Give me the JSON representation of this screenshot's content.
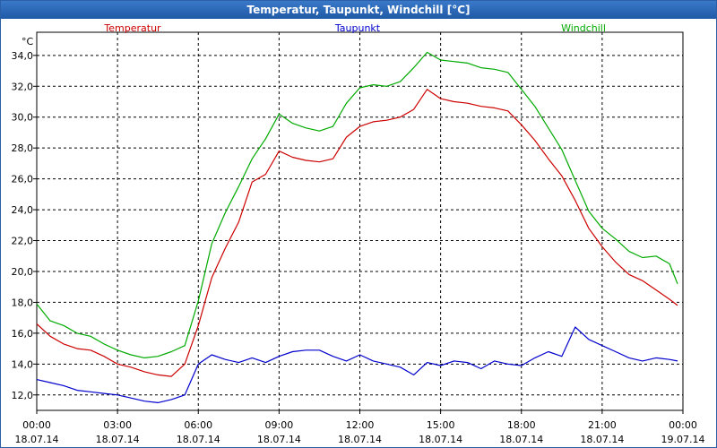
{
  "window": {
    "title": "Temperatur, Taupunkt, Windchill [°C]"
  },
  "chart_data": {
    "type": "line",
    "title": "Temperatur, Taupunkt, Windchill [°C]",
    "ylabel": "°C",
    "xlabel": "",
    "ylim": [
      11,
      35.5
    ],
    "xlim": [
      0,
      24
    ],
    "grid": true,
    "legend_position": "top",
    "yticks": [
      "12,0",
      "14,0",
      "16,0",
      "18,0",
      "20,0",
      "22,0",
      "24,0",
      "26,0",
      "28,0",
      "30,0",
      "32,0",
      "34,0"
    ],
    "ytick_values": [
      12,
      14,
      16,
      18,
      20,
      22,
      24,
      26,
      28,
      30,
      32,
      34
    ],
    "xticks": [
      {
        "time": "00:00",
        "date": "18.07.14",
        "hour": 0
      },
      {
        "time": "03:00",
        "date": "18.07.14",
        "hour": 3
      },
      {
        "time": "06:00",
        "date": "18.07.14",
        "hour": 6
      },
      {
        "time": "09:00",
        "date": "18.07.14",
        "hour": 9
      },
      {
        "time": "12:00",
        "date": "18.07.14",
        "hour": 12
      },
      {
        "time": "15:00",
        "date": "18.07.14",
        "hour": 15
      },
      {
        "time": "18:00",
        "date": "18.07.14",
        "hour": 18
      },
      {
        "time": "21:00",
        "date": "18.07.14",
        "hour": 21
      },
      {
        "time": "00:00",
        "date": "19.07.14",
        "hour": 24
      }
    ],
    "x": [
      0,
      0.5,
      1,
      1.5,
      2,
      2.5,
      3,
      3.5,
      4,
      4.5,
      5,
      5.5,
      6,
      6.5,
      7,
      7.5,
      8,
      8.5,
      9,
      9.5,
      10,
      10.5,
      11,
      11.5,
      12,
      12.5,
      13,
      13.5,
      14,
      14.5,
      15,
      15.5,
      16,
      16.5,
      17,
      17.5,
      18,
      18.5,
      19,
      19.5,
      20,
      20.5,
      21,
      21.5,
      22,
      22.5,
      23,
      23.5,
      23.8
    ],
    "series": [
      {
        "name": "Temperatur",
        "color": "#cc0000",
        "values": [
          16.6,
          15.8,
          15.3,
          15.0,
          14.9,
          14.5,
          14.0,
          13.8,
          13.5,
          13.3,
          13.2,
          14.0,
          16.5,
          19.6,
          21.5,
          23.2,
          25.8,
          26.3,
          27.8,
          27.4,
          27.2,
          27.1,
          27.3,
          28.7,
          29.4,
          29.7,
          29.8,
          30.0,
          30.5,
          31.8,
          31.2,
          31.0,
          30.9,
          30.7,
          30.6,
          30.4,
          29.5,
          28.5,
          27.3,
          26.2,
          24.6,
          22.8,
          21.6,
          20.6,
          19.8,
          19.4,
          18.8,
          18.2,
          17.8
        ]
      },
      {
        "name": "Taupunkt",
        "color": "#0000cc",
        "values": [
          13.0,
          12.8,
          12.6,
          12.3,
          12.2,
          12.1,
          12.0,
          11.8,
          11.6,
          11.5,
          11.7,
          12.0,
          14.0,
          14.6,
          14.3,
          14.1,
          14.4,
          14.1,
          14.5,
          14.8,
          14.9,
          14.9,
          14.5,
          14.2,
          14.6,
          14.2,
          14.0,
          13.8,
          13.3,
          14.1,
          13.9,
          14.2,
          14.1,
          13.7,
          14.2,
          14.0,
          13.9,
          14.4,
          14.8,
          14.5,
          16.4,
          15.6,
          15.2,
          14.8,
          14.4,
          14.2,
          14.4,
          14.3,
          14.2
        ]
      },
      {
        "name": "Windchill",
        "color": "#00aa00",
        "values": [
          17.9,
          16.8,
          16.5,
          16.0,
          15.8,
          15.3,
          14.9,
          14.6,
          14.4,
          14.5,
          14.8,
          15.2,
          18.1,
          21.8,
          23.8,
          25.5,
          27.3,
          28.6,
          30.2,
          29.6,
          29.3,
          29.1,
          29.4,
          30.9,
          31.9,
          32.1,
          32.0,
          32.3,
          33.2,
          34.2,
          33.7,
          33.6,
          33.5,
          33.2,
          33.1,
          32.9,
          31.8,
          30.7,
          29.3,
          27.9,
          25.9,
          23.9,
          22.8,
          22.1,
          21.3,
          20.9,
          21.0,
          20.5,
          19.2
        ]
      }
    ]
  }
}
